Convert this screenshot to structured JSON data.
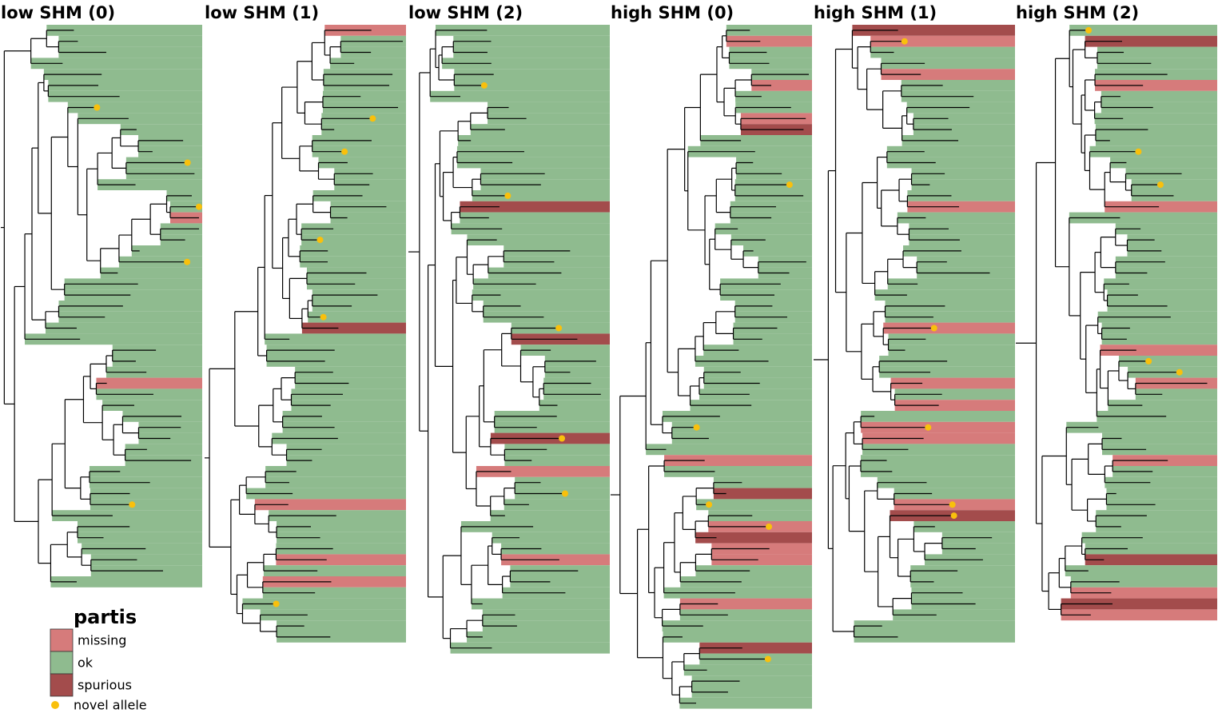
{
  "panels": [
    {
      "title": "low SHM (0)"
    },
    {
      "title": "low SHM (1)"
    },
    {
      "title": "low SHM (2)"
    },
    {
      "title": "high SHM (0)"
    },
    {
      "title": "high SHM (1)"
    },
    {
      "title": "high SHM (2)"
    }
  ],
  "legend": {
    "title": "partis",
    "items": [
      {
        "label": "missing",
        "color": "#d67b7b"
      },
      {
        "label": "ok",
        "color": "#8fbb8f"
      },
      {
        "label": "spurious",
        "color": "#a34c4c"
      }
    ],
    "novel": {
      "label": "novel allele",
      "color": "#f9c00c"
    }
  }
}
